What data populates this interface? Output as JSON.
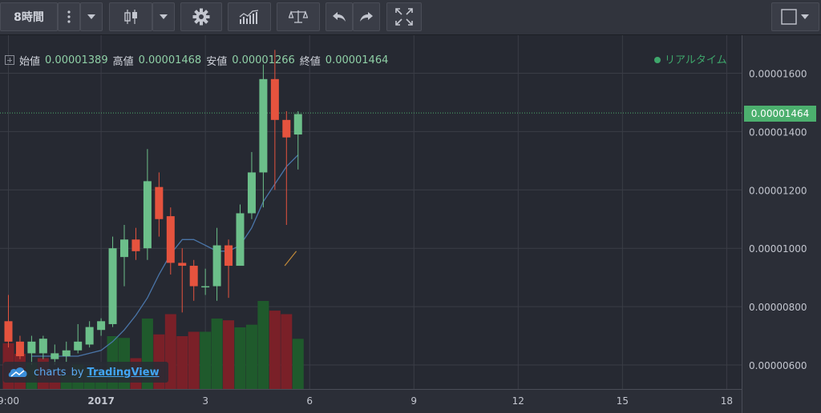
{
  "toolbar": {
    "interval_label": "8時間",
    "colors": {
      "background": "#31343d",
      "button": "#3a3d47",
      "icon": "#c3c6cf"
    }
  },
  "legend": {
    "open_label": "始値",
    "open_value": "0.00001389",
    "high_label": "高値",
    "high_value": "0.00001468",
    "low_label": "安値",
    "low_value": "0.00001266",
    "close_label": "終値",
    "close_value": "0.00001464"
  },
  "realtime_label": "リアルタイム",
  "last_price": "0.00001464",
  "watermark": {
    "charts_text": "charts",
    "by_text": "by",
    "brand_text": "TradingView"
  },
  "chart_data": {
    "type": "candlestick",
    "y_range": [
      4.6e-06,
      1.67e-05
    ],
    "y_ticks": [
      "0.00001600",
      "0.00001400",
      "0.00001200",
      "0.00001000",
      "0.00000800",
      "0.00000600"
    ],
    "y_tick_values": [
      1.6e-05,
      1.4e-05,
      1.2e-05,
      1e-05,
      8e-06,
      6e-06
    ],
    "x_ticks": [
      "9:00",
      "2017",
      "3",
      "6",
      "9",
      "12",
      "15",
      "18"
    ],
    "x_tick_index": [
      0,
      8,
      17,
      26,
      35,
      44,
      53,
      62
    ],
    "candles": [
      {
        "i": 0,
        "o": 7.5e-06,
        "h": 8.4e-06,
        "l": 6.6e-06,
        "c": 6.8e-06
      },
      {
        "i": 1,
        "o": 6.8e-06,
        "h": 7e-06,
        "l": 6.2e-06,
        "c": 6.3e-06
      },
      {
        "i": 2,
        "o": 6.4e-06,
        "h": 7e-06,
        "l": 6e-06,
        "c": 6.8e-06
      },
      {
        "i": 3,
        "o": 6.4e-06,
        "h": 7e-06,
        "l": 6.2e-06,
        "c": 6.9e-06
      },
      {
        "i": 4,
        "o": 6.2e-06,
        "h": 6.7e-06,
        "l": 6e-06,
        "c": 6.4e-06
      },
      {
        "i": 5,
        "o": 6.3e-06,
        "h": 6.8e-06,
        "l": 6.1e-06,
        "c": 6.5e-06
      },
      {
        "i": 6,
        "o": 6.5e-06,
        "h": 7.4e-06,
        "l": 6.4e-06,
        "c": 6.8e-06
      },
      {
        "i": 7,
        "o": 6.7e-06,
        "h": 7.5e-06,
        "l": 6.6e-06,
        "c": 7.3e-06
      },
      {
        "i": 8,
        "o": 7.2e-06,
        "h": 7.6e-06,
        "l": 7e-06,
        "c": 7.5e-06
      },
      {
        "i": 9,
        "o": 7.4e-06,
        "h": 1.04e-05,
        "l": 7.3e-06,
        "c": 1e-05
      },
      {
        "i": 10,
        "o": 9.7e-06,
        "h": 1.08e-05,
        "l": 8.7e-06,
        "c": 1.03e-05
      },
      {
        "i": 11,
        "o": 1.03e-05,
        "h": 1.07e-05,
        "l": 9.6e-06,
        "c": 9.9e-06
      },
      {
        "i": 12,
        "o": 1e-05,
        "h": 1.34e-05,
        "l": 9.6e-06,
        "c": 1.23e-05
      },
      {
        "i": 13,
        "o": 1.21e-05,
        "h": 1.26e-05,
        "l": 1.04e-05,
        "c": 1.1e-05
      },
      {
        "i": 14,
        "o": 1.11e-05,
        "h": 1.14e-05,
        "l": 9.1e-06,
        "c": 9.5e-06
      },
      {
        "i": 15,
        "o": 9.5e-06,
        "h": 1e-05,
        "l": 7.8e-06,
        "c": 9.4e-06
      },
      {
        "i": 16,
        "o": 9.4e-06,
        "h": 9.6e-06,
        "l": 8.2e-06,
        "c": 8.7e-06
      },
      {
        "i": 17,
        "o": 8.7e-06,
        "h": 9.3e-06,
        "l": 8.4e-06,
        "c": 8.7e-06
      },
      {
        "i": 18,
        "o": 8.7e-06,
        "h": 1.07e-05,
        "l": 8.2e-06,
        "c": 1.01e-05
      },
      {
        "i": 19,
        "o": 1.01e-05,
        "h": 1.03e-05,
        "l": 8.3e-06,
        "c": 9.4e-06
      },
      {
        "i": 20,
        "o": 9.4e-06,
        "h": 1.15e-05,
        "l": 9.4e-06,
        "c": 1.12e-05
      },
      {
        "i": 21,
        "o": 1.12e-05,
        "h": 1.33e-05,
        "l": 1.1e-05,
        "c": 1.26e-05
      },
      {
        "i": 22,
        "o": 1.26e-05,
        "h": 1.63e-05,
        "l": 1.14e-05,
        "c": 1.58e-05
      },
      {
        "i": 23,
        "o": 1.58e-05,
        "h": 1.68e-05,
        "l": 1.2e-05,
        "c": 1.44e-05
      },
      {
        "i": 24,
        "o": 1.44e-05,
        "h": 1.47e-05,
        "l": 1.08e-05,
        "c": 1.38e-05
      },
      {
        "i": 25,
        "o": 1.39e-05,
        "h": 1.47e-05,
        "l": 1.27e-05,
        "c": 1.46e-05
      }
    ],
    "ma_line": [
      [
        2,
        6.3e-06
      ],
      [
        4,
        6.3e-06
      ],
      [
        6,
        6.3e-06
      ],
      [
        8,
        6.5e-06
      ],
      [
        9,
        6.8e-06
      ],
      [
        10,
        7.2e-06
      ],
      [
        11,
        7.7e-06
      ],
      [
        12,
        8.3e-06
      ],
      [
        13,
        9.1e-06
      ],
      [
        14,
        9.8e-06
      ],
      [
        15,
        1.03e-05
      ],
      [
        16,
        1.03e-05
      ],
      [
        17,
        1.01e-05
      ],
      [
        18,
        9.9e-06
      ],
      [
        19,
        9.9e-06
      ],
      [
        20,
        1.01e-05
      ],
      [
        21,
        1.07e-05
      ],
      [
        22,
        1.16e-05
      ],
      [
        23,
        1.22e-05
      ],
      [
        24,
        1.28e-05
      ],
      [
        25,
        1.32e-05
      ]
    ],
    "volume": [
      {
        "i": 0,
        "v": 0.52,
        "up": false
      },
      {
        "i": 1,
        "v": 0.4,
        "up": false
      },
      {
        "i": 2,
        "v": 0.3,
        "up": true
      },
      {
        "i": 3,
        "v": 0.35,
        "up": false
      },
      {
        "i": 4,
        "v": 0.2,
        "up": false
      },
      {
        "i": 5,
        "v": 0.16,
        "up": true
      },
      {
        "i": 6,
        "v": 0.28,
        "up": true
      },
      {
        "i": 7,
        "v": 0.24,
        "up": true
      },
      {
        "i": 8,
        "v": 0.22,
        "up": true
      },
      {
        "i": 9,
        "v": 0.6,
        "up": true
      },
      {
        "i": 10,
        "v": 0.58,
        "up": true
      },
      {
        "i": 11,
        "v": 0.35,
        "up": false
      },
      {
        "i": 12,
        "v": 0.8,
        "up": true
      },
      {
        "i": 13,
        "v": 0.62,
        "up": false
      },
      {
        "i": 14,
        "v": 0.85,
        "up": false
      },
      {
        "i": 15,
        "v": 0.6,
        "up": false
      },
      {
        "i": 16,
        "v": 0.65,
        "up": false
      },
      {
        "i": 17,
        "v": 0.65,
        "up": true
      },
      {
        "i": 18,
        "v": 0.8,
        "up": true
      },
      {
        "i": 19,
        "v": 0.78,
        "up": false
      },
      {
        "i": 20,
        "v": 0.7,
        "up": true
      },
      {
        "i": 21,
        "v": 0.73,
        "up": true
      },
      {
        "i": 22,
        "v": 1.0,
        "up": true
      },
      {
        "i": 23,
        "v": 0.89,
        "up": false
      },
      {
        "i": 24,
        "v": 0.85,
        "up": false
      },
      {
        "i": 25,
        "v": 0.57,
        "up": true
      }
    ],
    "colors": {
      "up": "#6cbf8a",
      "down": "#e5533e",
      "ma": "#4a75a8",
      "vol_up": "#1f5a2c",
      "vol_down": "#7a2028",
      "grid": "#3a3d46",
      "last_line": "#4caf6e"
    }
  }
}
